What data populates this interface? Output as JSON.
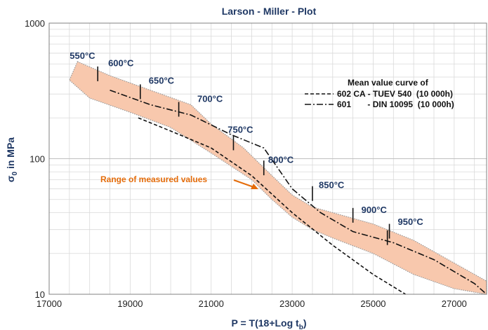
{
  "chart_data": {
    "type": "line",
    "title": "Larson - Miller - Plot",
    "xlabel": "P = T(18+Log t",
    "xlabel_sub": "b",
    "xlabel_end": ")",
    "ylabel": "σ",
    "ylabel_sub": "0",
    "ylabel_end": " in MPa",
    "xlim": [
      17000,
      27800
    ],
    "ylim": [
      10,
      1000
    ],
    "y_scale": "log",
    "x_ticks": [
      17000,
      19000,
      21000,
      23000,
      25000,
      27000
    ],
    "y_ticks": [
      10,
      100,
      1000
    ],
    "grid": true,
    "legend_title": "Mean value curve of",
    "legend_position": "top-right",
    "series": [
      {
        "name": "602 CA - TUEV 540  (10 000h)",
        "style": "dashed",
        "x": [
          19200,
          20000,
          21000,
          22000,
          23000,
          24000,
          25000,
          25800
        ],
        "y": [
          200,
          160,
          120,
          75,
          40,
          23,
          14,
          10
        ]
      },
      {
        "name": "601       - DIN 10095  (10 000h)",
        "style": "dashdot",
        "x": [
          18500,
          19500,
          20500,
          21500,
          22300,
          23000,
          23700,
          24500,
          25500,
          26500,
          27500,
          27800
        ],
        "y": [
          320,
          250,
          210,
          150,
          120,
          60,
          40,
          29,
          24,
          18,
          12,
          10
        ]
      }
    ],
    "band": {
      "label": "Range of measured values",
      "color": "#f8c8ad",
      "edge_color": "#9a9a9a",
      "upper": {
        "x": [
          17700,
          18500,
          19500,
          20500,
          21000,
          21800,
          22500,
          23000,
          23500,
          24000,
          25000,
          26000,
          27000,
          27800
        ],
        "y": [
          520,
          410,
          320,
          250,
          180,
          120,
          75,
          54,
          44,
          40,
          33,
          25,
          17,
          12.5
        ]
      },
      "lower": {
        "x": [
          27800,
          27000,
          26000,
          25000,
          24000,
          23500,
          23000,
          22500,
          22000,
          21000,
          20000,
          19000,
          18000,
          17500
        ],
        "y": [
          10,
          11,
          14,
          20,
          26,
          30,
          37,
          50,
          70,
          110,
          170,
          220,
          280,
          380
        ]
      }
    },
    "temperature_markers": [
      {
        "label": "550°C",
        "x": 18200,
        "y": 420
      },
      {
        "label": "600°C",
        "x": 19250,
        "y": 310
      },
      {
        "label": "650°C",
        "x": 20200,
        "y": 230
      },
      {
        "label": "700°C",
        "x": 21550,
        "y": 130
      },
      {
        "label": "750°C",
        "x": 22300,
        "y": 85
      },
      {
        "label": "800°C",
        "x": 23500,
        "y": 55
      },
      {
        "label": "850°C",
        "x": 24500,
        "y": 38
      },
      {
        "label": "900°C",
        "x": 25400,
        "y": 29
      },
      {
        "label": "950°C",
        "x": null,
        "y": null
      }
    ]
  }
}
